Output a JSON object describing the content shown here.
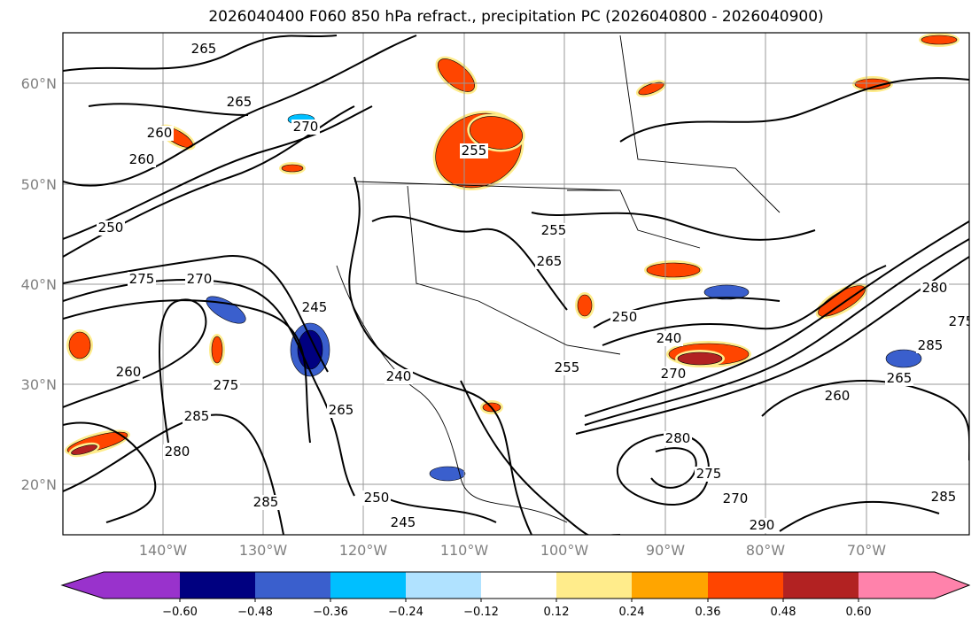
{
  "title": "2026040400 F060 850 hPa refract., precipitation PC (2026040800 - 2026040900)",
  "map": {
    "lat_labels": [
      "60°N",
      "50°N",
      "40°N",
      "30°N",
      "20°N"
    ],
    "lon_labels": [
      "140°W",
      "130°W",
      "120°W",
      "110°W",
      "100°W",
      "90°W",
      "80°W",
      "70°W"
    ],
    "contour_labels": [
      "265",
      "260",
      "265",
      "270",
      "260",
      "255",
      "250",
      "275",
      "270",
      "245",
      "240",
      "260",
      "285",
      "280",
      "275",
      "285",
      "250",
      "245",
      "265",
      "255",
      "265",
      "250",
      "240",
      "270",
      "280",
      "275",
      "285",
      "265",
      "260",
      "270",
      "280",
      "285",
      "290",
      "275",
      "255"
    ]
  },
  "colorbar": {
    "colors": [
      "#9932cc",
      "#000080",
      "#3a5fcd",
      "#00bfff",
      "#b0e2ff",
      "#ffffff",
      "#ffec8b",
      "#ffa500",
      "#ff4500",
      "#b22222",
      "#ff82ab"
    ],
    "tick_labels": [
      "−0.60",
      "−0.48",
      "−0.36",
      "−0.24",
      "−0.12",
      "0.12",
      "0.24",
      "0.36",
      "0.48",
      "0.60"
    ]
  }
}
